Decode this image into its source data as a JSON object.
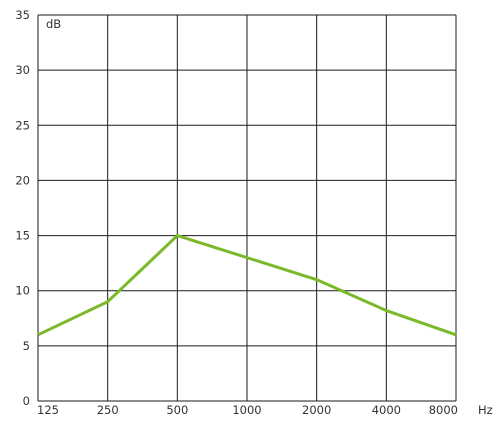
{
  "chart_data": {
    "type": "line",
    "x": [
      "125",
      "250",
      "500",
      "1000",
      "2000",
      "4000",
      "8000"
    ],
    "series": [
      {
        "values": [
          6,
          9,
          15,
          13,
          11,
          8.2,
          6
        ]
      }
    ],
    "ylabel": "dB",
    "xunit": "Hz",
    "ylim": [
      0,
      35
    ],
    "yticks": [
      0,
      5,
      10,
      15,
      20,
      25,
      30,
      35
    ],
    "grid": true,
    "colors": {
      "line": "#7ab929",
      "grid": "#1a1a1a",
      "text": "#333333"
    }
  }
}
